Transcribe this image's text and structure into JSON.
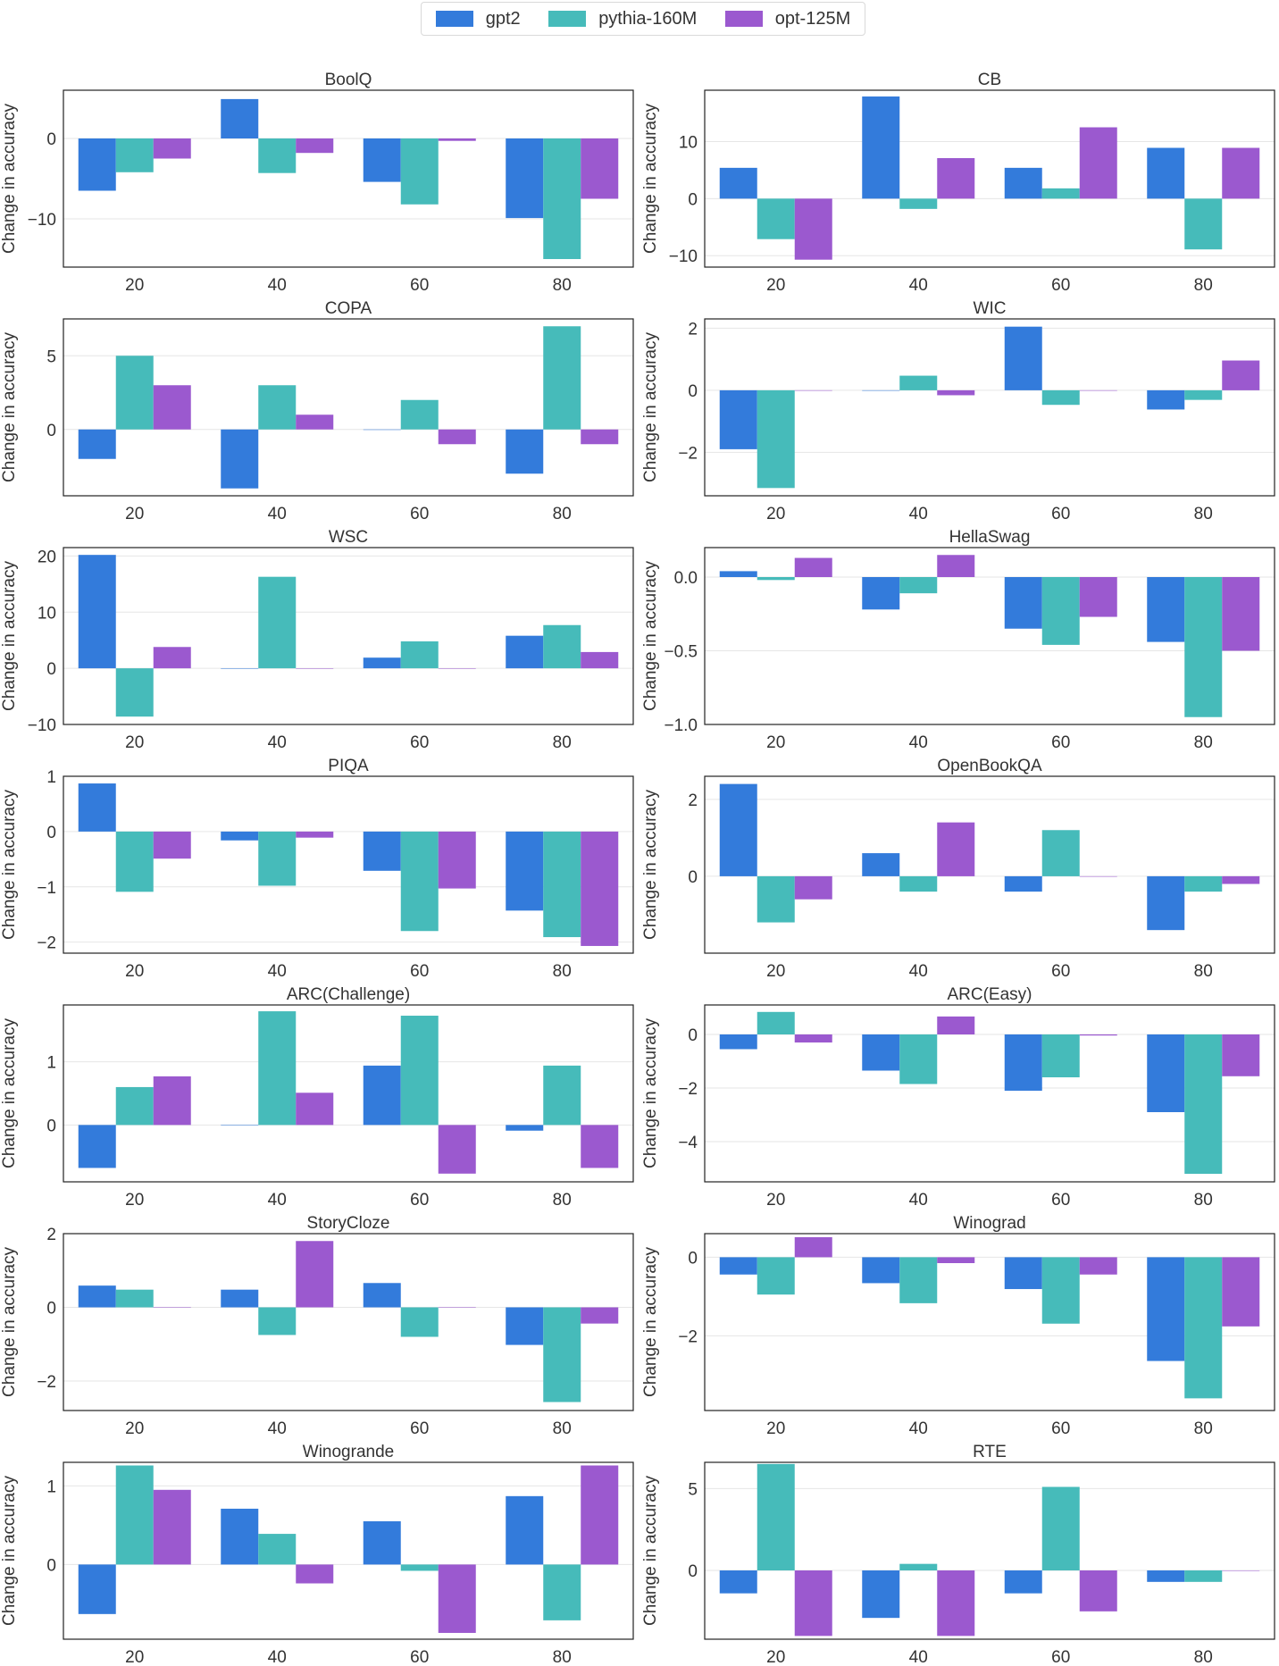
{
  "legend": {
    "series": [
      {
        "name": "gpt2",
        "color": "#337BDB"
      },
      {
        "name": "pythia-160M",
        "color": "#46BBBA"
      },
      {
        "name": "opt-125M",
        "color": "#9B59CF"
      }
    ]
  },
  "chart_data": [
    {
      "type": "bar",
      "title": "BoolQ",
      "ylabel": "Change in accuracy",
      "categories": [
        "20",
        "40",
        "60",
        "80"
      ],
      "ylim": [
        -16,
        6
      ],
      "yticks": [
        0,
        -10
      ],
      "series": [
        {
          "name": "gpt2",
          "values": [
            -6.5,
            4.9,
            -5.4,
            -9.9
          ]
        },
        {
          "name": "pythia-160M",
          "values": [
            -4.2,
            -4.3,
            -8.2,
            -15.0
          ]
        },
        {
          "name": "opt-125M",
          "values": [
            -2.5,
            -1.8,
            -0.3,
            -7.5
          ]
        }
      ]
    },
    {
      "type": "bar",
      "title": "CB",
      "ylabel": "Change in accuracy",
      "categories": [
        "20",
        "40",
        "60",
        "80"
      ],
      "ylim": [
        -12,
        19
      ],
      "yticks": [
        10,
        0,
        -10
      ],
      "series": [
        {
          "name": "gpt2",
          "values": [
            5.4,
            17.9,
            5.4,
            8.9
          ]
        },
        {
          "name": "pythia-160M",
          "values": [
            -7.1,
            -1.8,
            1.8,
            -8.9
          ]
        },
        {
          "name": "opt-125M",
          "values": [
            -10.7,
            7.1,
            12.5,
            8.9
          ]
        }
      ]
    },
    {
      "type": "bar",
      "title": "COPA",
      "ylabel": "Change in accuracy",
      "categories": [
        "20",
        "40",
        "60",
        "80"
      ],
      "ylim": [
        -4.5,
        7.5
      ],
      "yticks": [
        5,
        0
      ],
      "series": [
        {
          "name": "gpt2",
          "values": [
            -2,
            -4,
            0,
            -3
          ]
        },
        {
          "name": "pythia-160M",
          "values": [
            5,
            3,
            2,
            7
          ]
        },
        {
          "name": "opt-125M",
          "values": [
            3,
            1,
            -1,
            -1
          ]
        }
      ]
    },
    {
      "type": "bar",
      "title": "WIC",
      "ylabel": "Change in accuracy",
      "categories": [
        "20",
        "40",
        "60",
        "80"
      ],
      "ylim": [
        -3.4,
        2.3
      ],
      "yticks": [
        2,
        0,
        -2
      ],
      "series": [
        {
          "name": "gpt2",
          "values": [
            -1.9,
            0,
            2.05,
            -0.62
          ]
        },
        {
          "name": "pythia-160M",
          "values": [
            -3.15,
            0.47,
            -0.47,
            -0.31
          ]
        },
        {
          "name": "opt-125M",
          "values": [
            0,
            -0.16,
            0,
            0.96
          ]
        }
      ]
    },
    {
      "type": "bar",
      "title": "WSC",
      "ylabel": "Change in accuracy",
      "categories": [
        "20",
        "40",
        "60",
        "80"
      ],
      "ylim": [
        -10,
        21.5
      ],
      "yticks": [
        20,
        10,
        0,
        -10
      ],
      "series": [
        {
          "name": "gpt2",
          "values": [
            20.2,
            0,
            1.9,
            5.8
          ]
        },
        {
          "name": "pythia-160M",
          "values": [
            -8.6,
            16.3,
            4.8,
            7.7
          ]
        },
        {
          "name": "opt-125M",
          "values": [
            3.8,
            0,
            0,
            2.9
          ]
        }
      ]
    },
    {
      "type": "bar",
      "title": "HellaSwag",
      "ylabel": "Change in accuracy",
      "categories": [
        "20",
        "40",
        "60",
        "80"
      ],
      "ylim": [
        -1.0,
        0.2
      ],
      "yticks": [
        0.0,
        -0.5,
        -1.0
      ],
      "tickdec": 1,
      "series": [
        {
          "name": "gpt2",
          "values": [
            0.04,
            -0.22,
            -0.35,
            -0.44
          ]
        },
        {
          "name": "pythia-160M",
          "values": [
            -0.02,
            -0.11,
            -0.46,
            -0.95
          ]
        },
        {
          "name": "opt-125M",
          "values": [
            0.13,
            0.15,
            -0.27,
            -0.5
          ]
        }
      ]
    },
    {
      "type": "bar",
      "title": "PIQA",
      "ylabel": "Change in accuracy",
      "categories": [
        "20",
        "40",
        "60",
        "80"
      ],
      "ylim": [
        -2.2,
        1.0
      ],
      "yticks": [
        1,
        0,
        -1,
        -2
      ],
      "series": [
        {
          "name": "gpt2",
          "values": [
            0.87,
            -0.16,
            -0.71,
            -1.43
          ]
        },
        {
          "name": "pythia-160M",
          "values": [
            -1.09,
            -0.98,
            -1.8,
            -1.91
          ]
        },
        {
          "name": "opt-125M",
          "values": [
            -0.49,
            -0.11,
            -1.03,
            -2.07
          ]
        }
      ]
    },
    {
      "type": "bar",
      "title": "OpenBookQA",
      "ylabel": "Change in accuracy",
      "categories": [
        "20",
        "40",
        "60",
        "80"
      ],
      "ylim": [
        -2.0,
        2.6
      ],
      "yticks": [
        2,
        0
      ],
      "series": [
        {
          "name": "gpt2",
          "values": [
            2.4,
            0.6,
            -0.4,
            -1.4
          ]
        },
        {
          "name": "pythia-160M",
          "values": [
            -1.2,
            -0.4,
            1.2,
            -0.4
          ]
        },
        {
          "name": "opt-125M",
          "values": [
            -0.6,
            1.4,
            0,
            -0.2
          ]
        }
      ]
    },
    {
      "type": "bar",
      "title": "ARC(Challenge)",
      "ylabel": "Change in accuracy",
      "categories": [
        "20",
        "40",
        "60",
        "80"
      ],
      "ylim": [
        -0.9,
        1.9
      ],
      "yticks": [
        1,
        0
      ],
      "series": [
        {
          "name": "gpt2",
          "values": [
            -0.68,
            0,
            0.94,
            -0.09
          ]
        },
        {
          "name": "pythia-160M",
          "values": [
            0.6,
            1.8,
            1.73,
            0.94
          ]
        },
        {
          "name": "opt-125M",
          "values": [
            0.77,
            0.51,
            -0.77,
            -0.68
          ]
        }
      ]
    },
    {
      "type": "bar",
      "title": "ARC(Easy)",
      "ylabel": "Change in accuracy",
      "categories": [
        "20",
        "40",
        "60",
        "80"
      ],
      "ylim": [
        -5.5,
        1.1
      ],
      "yticks": [
        0,
        -2,
        -4
      ],
      "series": [
        {
          "name": "gpt2",
          "values": [
            -0.55,
            -1.35,
            -2.1,
            -2.9
          ]
        },
        {
          "name": "pythia-160M",
          "values": [
            0.84,
            -1.85,
            -1.6,
            -5.2
          ]
        },
        {
          "name": "opt-125M",
          "values": [
            -0.3,
            0.67,
            -0.04,
            -1.56
          ]
        }
      ]
    },
    {
      "type": "bar",
      "title": "StoryCloze",
      "ylabel": "Change in accuracy",
      "categories": [
        "20",
        "40",
        "60",
        "80"
      ],
      "ylim": [
        -2.8,
        2.0
      ],
      "yticks": [
        2,
        0,
        -2
      ],
      "series": [
        {
          "name": "gpt2",
          "values": [
            0.59,
            0.48,
            0.66,
            -1.02
          ]
        },
        {
          "name": "pythia-160M",
          "values": [
            0.48,
            -0.75,
            -0.8,
            -2.57
          ]
        },
        {
          "name": "opt-125M",
          "values": [
            0,
            1.8,
            0,
            -0.44
          ]
        }
      ]
    },
    {
      "type": "bar",
      "title": "Winograd",
      "ylabel": "Change in accuracy",
      "categories": [
        "20",
        "40",
        "60",
        "80"
      ],
      "ylim": [
        -3.9,
        0.6
      ],
      "yticks": [
        0,
        -2
      ],
      "series": [
        {
          "name": "gpt2",
          "values": [
            -0.44,
            -0.66,
            -0.81,
            -2.64
          ]
        },
        {
          "name": "pythia-160M",
          "values": [
            -0.95,
            -1.17,
            -1.69,
            -3.59
          ]
        },
        {
          "name": "opt-125M",
          "values": [
            0.51,
            -0.15,
            -0.44,
            -1.76
          ]
        }
      ]
    },
    {
      "type": "bar",
      "title": "Winogrande",
      "ylabel": "Change in accuracy",
      "categories": [
        "20",
        "40",
        "60",
        "80"
      ],
      "ylim": [
        -0.95,
        1.3
      ],
      "yticks": [
        1,
        0
      ],
      "series": [
        {
          "name": "gpt2",
          "values": [
            -0.63,
            0.71,
            0.55,
            0.87
          ]
        },
        {
          "name": "pythia-160M",
          "values": [
            1.26,
            0.39,
            -0.08,
            -0.71
          ]
        },
        {
          "name": "opt-125M",
          "values": [
            0.95,
            -0.24,
            -0.87,
            1.26
          ]
        }
      ]
    },
    {
      "type": "bar",
      "title": "RTE",
      "ylabel": "Change in accuracy",
      "categories": [
        "20",
        "40",
        "60",
        "80"
      ],
      "ylim": [
        -4.2,
        6.6
      ],
      "yticks": [
        5,
        0
      ],
      "series": [
        {
          "name": "gpt2",
          "values": [
            -1.4,
            -2.9,
            -1.4,
            -0.7
          ]
        },
        {
          "name": "pythia-160M",
          "values": [
            6.5,
            0.4,
            5.1,
            -0.7
          ]
        },
        {
          "name": "opt-125M",
          "values": [
            -4.0,
            -4.0,
            -2.5,
            0
          ]
        }
      ]
    }
  ]
}
